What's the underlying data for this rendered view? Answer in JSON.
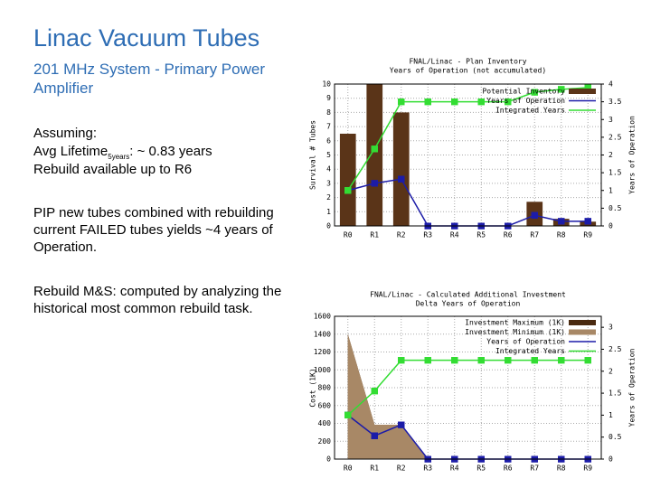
{
  "slide": {
    "title": "Linac Vacuum Tubes",
    "subtitle": "201 MHz System - Primary Power Amplifier",
    "assuming": "Assuming:",
    "lifetime_label": "Avg Lifetime",
    "lifetime_sub": "5years",
    "lifetime_value": ": ~ 0.83 years",
    "rebuild": "Rebuild available up to R6",
    "pip": "PIP new tubes combined with rebuilding current FAILED tubes yields ~4 years of Operation.",
    "ms": "Rebuild M&S: computed by analyzing the historical most common rebuild task."
  },
  "chart_data": [
    {
      "type": "combo",
      "title": "FNAL/Linac - Plan Inventory",
      "subtitle": "Years of Operation (not accumulated)",
      "y_label": "Survival # Tubes",
      "y2_label": "Years of Operation",
      "categories": [
        "R0",
        "R1",
        "R2",
        "R3",
        "R4",
        "R5",
        "R6",
        "R7",
        "R8",
        "R9"
      ],
      "ylim": [
        0,
        10
      ],
      "yticks": [
        0,
        1,
        2,
        3,
        4,
        5,
        6,
        7,
        8,
        9,
        10
      ],
      "y2lim": [
        0,
        4
      ],
      "y2ticks": [
        0,
        0.5,
        1,
        1.5,
        2,
        2.5,
        3,
        3.5,
        4
      ],
      "grid": true,
      "series": [
        {
          "name": "Potential Inventory",
          "type": "bar",
          "color": "#5a3418",
          "values": [
            6.5,
            10,
            8,
            0,
            0,
            0,
            0,
            1.7,
            0.5,
            0.3
          ]
        },
        {
          "name": "Years of Operation",
          "type": "line",
          "axis": "y2",
          "color": "#1c1ca8",
          "values": [
            1,
            1.2,
            1.32,
            0,
            0,
            0,
            0,
            0.3,
            0.13,
            0.13
          ]
        },
        {
          "name": "Integrated Years",
          "type": "line",
          "axis": "y2",
          "color": "#33dd33",
          "values": [
            1,
            2.17,
            3.5,
            3.5,
            3.5,
            3.5,
            3.5,
            3.77,
            3.85,
            3.9
          ]
        }
      ]
    },
    {
      "type": "combo",
      "title": "FNAL/Linac - Calculated Additional Investment",
      "subtitle": "Delta Years of Operation",
      "y_label": "Cost (1K)",
      "y2_label": "Years of Operation",
      "categories": [
        "R0",
        "R1",
        "R2",
        "R3",
        "R4",
        "R5",
        "R6",
        "R7",
        "R8",
        "R9"
      ],
      "ylim": [
        0,
        1600
      ],
      "yticks": [
        0,
        200,
        400,
        600,
        800,
        1000,
        1200,
        1400,
        1600
      ],
      "y2lim": [
        0,
        3.25
      ],
      "y2ticks": [
        0,
        0.5,
        1,
        1.5,
        2,
        2.5,
        3
      ],
      "grid": true,
      "series": [
        {
          "name": "Investment Maximum (1K)",
          "type": "area",
          "color": "#4a2a10",
          "values": [
            1400,
            385,
            385,
            0,
            0,
            0,
            0,
            0,
            0,
            0
          ]
        },
        {
          "name": "Investment Minimum (1K)",
          "type": "area",
          "color": "#a88866",
          "values": [
            1400,
            385,
            385,
            0,
            0,
            0,
            0,
            0,
            0,
            0
          ]
        },
        {
          "name": "Years of Operation",
          "type": "line",
          "axis": "y2",
          "color": "#1c1ca8",
          "values": [
            1,
            0.53,
            0.78,
            0,
            0,
            0,
            0,
            0,
            0,
            0
          ]
        },
        {
          "name": "Integrated Years",
          "type": "line",
          "axis": "y2",
          "color": "#33dd33",
          "values": [
            1,
            1.55,
            2.25,
            2.25,
            2.25,
            2.25,
            2.25,
            2.25,
            2.25,
            2.25
          ]
        }
      ]
    }
  ]
}
